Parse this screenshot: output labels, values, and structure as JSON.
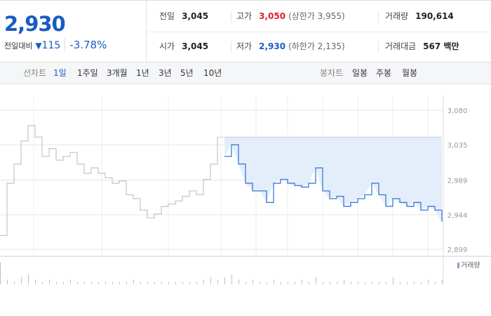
{
  "quote": {
    "price": "2,930",
    "change_label": "전일대비",
    "change_arrow": "▼",
    "change": "115",
    "change_pct": "-3.78%"
  },
  "info": [
    [
      {
        "label": "전일",
        "value": "3,045"
      },
      {
        "label": "고가",
        "value": "3,050",
        "extra": "(상한가 3,955)"
      },
      {
        "label": "거래량",
        "value": "190,614"
      }
    ],
    [
      {
        "label": "시가",
        "value": "3,045"
      },
      {
        "label": "저가",
        "value": "2,930",
        "extra": "(하한가 2,135)"
      },
      {
        "label": "거래대금",
        "value": "567 백만"
      }
    ]
  ],
  "tabs": {
    "line_label": "선차트",
    "line_periods": [
      "1일",
      "1주일",
      "3개월",
      "1년",
      "3년",
      "5년",
      "10년"
    ],
    "candle_label": "봉차트",
    "candle_periods": [
      "일봉",
      "주봉",
      "월봉"
    ]
  },
  "chart_data": {
    "type": "line",
    "ylim": [
      2890,
      3100
    ],
    "yticks": [
      {
        "value": 2899,
        "label": "2,899"
      },
      {
        "value": 2944,
        "label": "2,944"
      },
      {
        "value": 2989,
        "label": "2,989"
      },
      {
        "value": 3035,
        "label": "3,035"
      },
      {
        "value": 3080,
        "label": "3,080"
      }
    ],
    "grid": true,
    "baseline": 3045,
    "series": [
      {
        "color": "#c8c8c8",
        "values": [
          2917,
          2985,
          3010,
          3040,
          3060,
          3045,
          3020,
          3030,
          3015,
          3020,
          3025,
          3010,
          2998,
          3005,
          2998,
          2992,
          2985,
          2988,
          2970,
          2965,
          2950,
          2940,
          2945,
          2955,
          2958,
          2962,
          2968,
          2975,
          2970,
          2990,
          3010,
          3045,
          null,
          null,
          null,
          null,
          null,
          null,
          null,
          null,
          null,
          null,
          null,
          null,
          null,
          null,
          null,
          null,
          null,
          null,
          null,
          null,
          null,
          null,
          null,
          null,
          null,
          null,
          null,
          null,
          null,
          null,
          null,
          null
        ]
      },
      {
        "color": "#3a7bd5",
        "fill": "#e4eefa",
        "values": [
          null,
          null,
          null,
          null,
          null,
          null,
          null,
          null,
          null,
          null,
          null,
          null,
          null,
          null,
          null,
          null,
          null,
          null,
          null,
          null,
          null,
          null,
          null,
          null,
          null,
          null,
          null,
          null,
          null,
          null,
          null,
          null,
          3020,
          3035,
          3010,
          2985,
          2975,
          2975,
          2960,
          2985,
          2990,
          2985,
          2982,
          2980,
          2985,
          3005,
          2975,
          2965,
          2968,
          2955,
          2960,
          2965,
          2970,
          2985,
          2970,
          2955,
          2965,
          2960,
          2955,
          2960,
          2950,
          2955,
          2950,
          2935
        ]
      }
    ],
    "volume": {
      "name": "거래량",
      "color": "#c0c0c0",
      "vlim": [
        0,
        10
      ],
      "values": [
        9,
        2,
        1,
        3,
        4,
        2,
        1,
        2,
        1,
        1,
        2,
        1,
        1,
        1,
        1,
        1,
        1,
        1,
        1,
        2,
        1,
        1,
        1,
        1,
        1,
        1,
        1,
        1,
        1,
        2,
        3,
        2,
        3,
        4,
        2,
        1,
        2,
        1,
        1,
        2,
        1,
        1,
        1,
        2,
        1,
        3,
        1,
        1,
        1,
        2,
        1,
        1,
        1,
        1,
        1,
        1,
        3,
        1,
        1,
        1,
        1,
        2,
        1,
        2
      ]
    }
  }
}
